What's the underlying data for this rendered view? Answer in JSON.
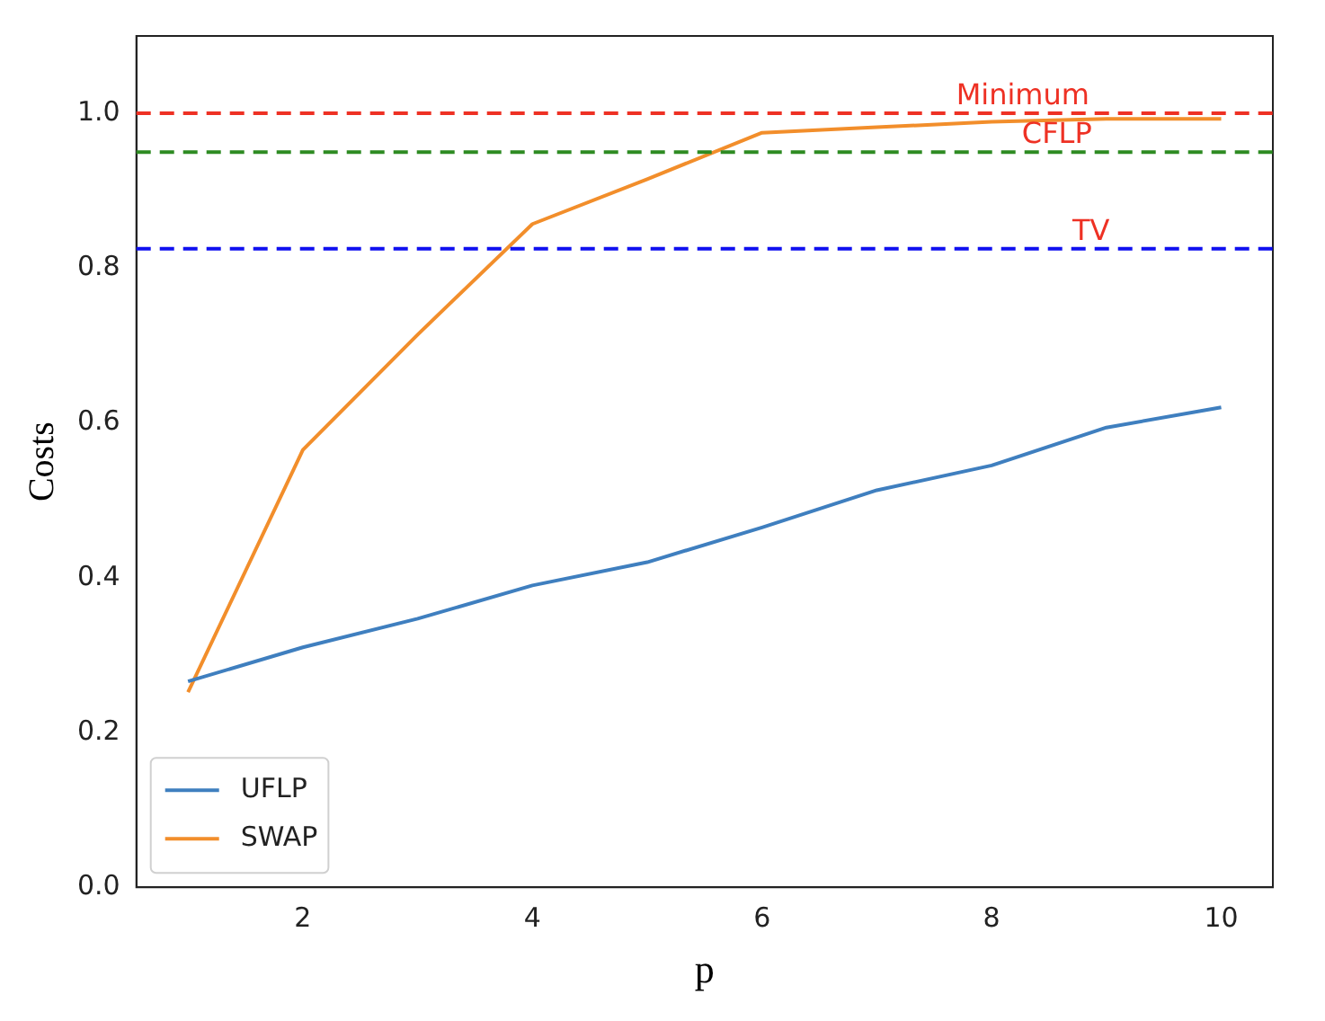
{
  "chart_data": {
    "type": "line",
    "xlabel": "p",
    "ylabel": "Costs",
    "xlim": [
      0.55,
      10.45
    ],
    "xticks": [
      2,
      4,
      6,
      8,
      10
    ],
    "ylim": [
      0,
      1.1
    ],
    "yticks": [
      {
        "value": 0,
        "label": "0.0"
      },
      {
        "value": 0.2,
        "label": "0.2"
      },
      {
        "value": 0.4,
        "label": "0.4"
      },
      {
        "value": 0.6,
        "label": "0.6"
      },
      {
        "value": 0.8,
        "label": "0.8"
      },
      {
        "value": 1,
        "label": "1.0"
      }
    ],
    "x": [
      1,
      2,
      3,
      4,
      5,
      6,
      7,
      8,
      9,
      10
    ],
    "series": [
      {
        "name": "UFLP",
        "color": "#3f7fbf",
        "values": [
          0.266,
          0.31,
          0.347,
          0.39,
          0.42,
          0.465,
          0.513,
          0.545,
          0.594,
          0.62
        ]
      },
      {
        "name": "SWAP",
        "color": "#f28e2b",
        "values": [
          0.252,
          0.565,
          0.714,
          0.857,
          0.915,
          0.975,
          0.982,
          0.989,
          0.993,
          0.993
        ]
      }
    ],
    "ref_lines": [
      {
        "axis": "y",
        "value": 1.0,
        "label": "Minimum",
        "color": "#ee3124",
        "line_style": "dashed"
      },
      {
        "axis": "y",
        "value": 0.95,
        "label": "CFLP",
        "color": "#2e8b22",
        "line_style": "dashed"
      },
      {
        "axis": "y",
        "value": 0.825,
        "label": "TV",
        "color": "#1010f0",
        "line_style": "dashed"
      }
    ],
    "legend": "bottom left",
    "grid": false,
    "marker": "none",
    "line_style": "solid"
  }
}
